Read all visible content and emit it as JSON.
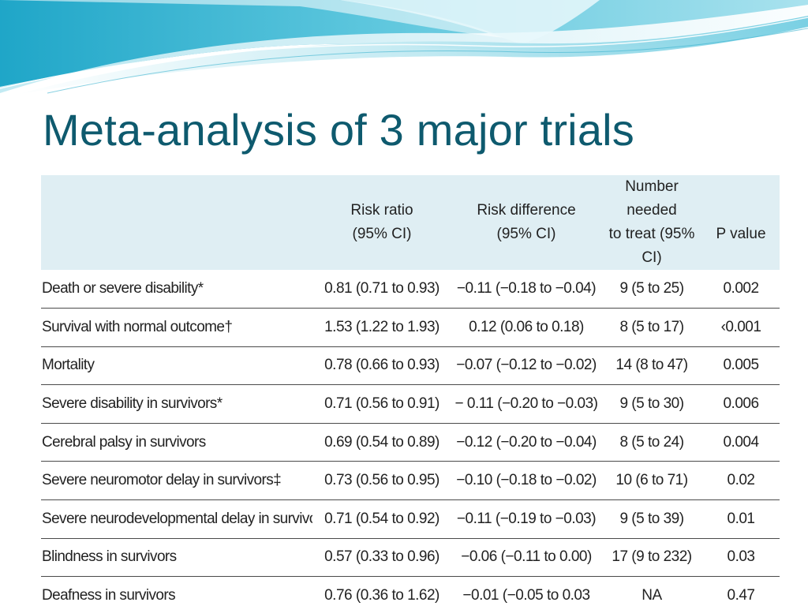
{
  "slide": {
    "title": "Meta-analysis of 3 major trials"
  },
  "table": {
    "headers": {
      "outcome": "",
      "risk_ratio": [
        "Risk ratio",
        "(95% CI)"
      ],
      "risk_difference": [
        "Risk difference",
        "(95% CI)"
      ],
      "nnt": [
        "Number needed",
        "to treat (95% CI)"
      ],
      "p_value": [
        "P value"
      ]
    },
    "rows": [
      {
        "outcome": "Death or severe disability*",
        "risk_ratio": "0.81 (0.71 to 0.93)",
        "risk_difference": "−0.11 (−0.18 to −0.04)",
        "nnt": "9 (5 to 25)",
        "p_value": "0.002"
      },
      {
        "outcome": "Survival with normal outcome†",
        "risk_ratio": "1.53 (1.22 to 1.93)",
        "risk_difference": "0.12 (0.06 to 0.18)",
        "nnt": "8 (5 to 17)",
        "p_value": "‹0.001"
      },
      {
        "outcome": "Mortality",
        "risk_ratio": "0.78 (0.66 to 0.93)",
        "risk_difference": "−0.07 (−0.12 to −0.02)",
        "nnt": "14 (8 to 47)",
        "p_value": "0.005"
      },
      {
        "outcome": "Severe disability in survivors*",
        "risk_ratio": "0.71 (0.56 to 0.91)",
        "risk_difference": "− 0.11 (−0.20 to −0.03)",
        "nnt": "9 (5 to 30)",
        "p_value": "0.006"
      },
      {
        "outcome": "Cerebral palsy in survivors",
        "risk_ratio": "0.69 (0.54 to 0.89)",
        "risk_difference": "−0.12 (−0.20 to −0.04)",
        "nnt": "8 (5 to 24)",
        "p_value": "0.004"
      },
      {
        "outcome": "Severe neuromotor delay in survivors‡",
        "risk_ratio": "0.73 (0.56 to 0.95)",
        "risk_difference": "−0.10 (−0.18 to −0.02)",
        "nnt": "10 (6 to 71)",
        "p_value": "0.02"
      },
      {
        "outcome": "Severe neurodevelopmental delay in survivors§",
        "risk_ratio": "0.71 (0.54 to 0.92)",
        "risk_difference": "−0.11 (−0.19 to −0.03)",
        "nnt": "9 (5 to 39)",
        "p_value": "0.01"
      },
      {
        "outcome": "Blindness in survivors",
        "risk_ratio": "0.57 (0.33 to 0.96)",
        "risk_difference": "−0.06 (−0.11 to 0.00)",
        "nnt": "17 (9 to 232)",
        "p_value": "0.03"
      },
      {
        "outcome": "Deafness in survivors",
        "risk_ratio": "0.76 (0.36 to 1.62)",
        "risk_difference": "−0.01 (−0.05 to 0.03",
        "nnt": "NA",
        "p_value": "0.47"
      }
    ]
  },
  "colors": {
    "title": "#0e5a6e",
    "header_band": "#dfeef3",
    "wave_light": "#cfeef5",
    "wave_mid": "#7fd0e3",
    "wave_dark": "#3ab3cf",
    "row_rule": "#4a4a4a"
  }
}
